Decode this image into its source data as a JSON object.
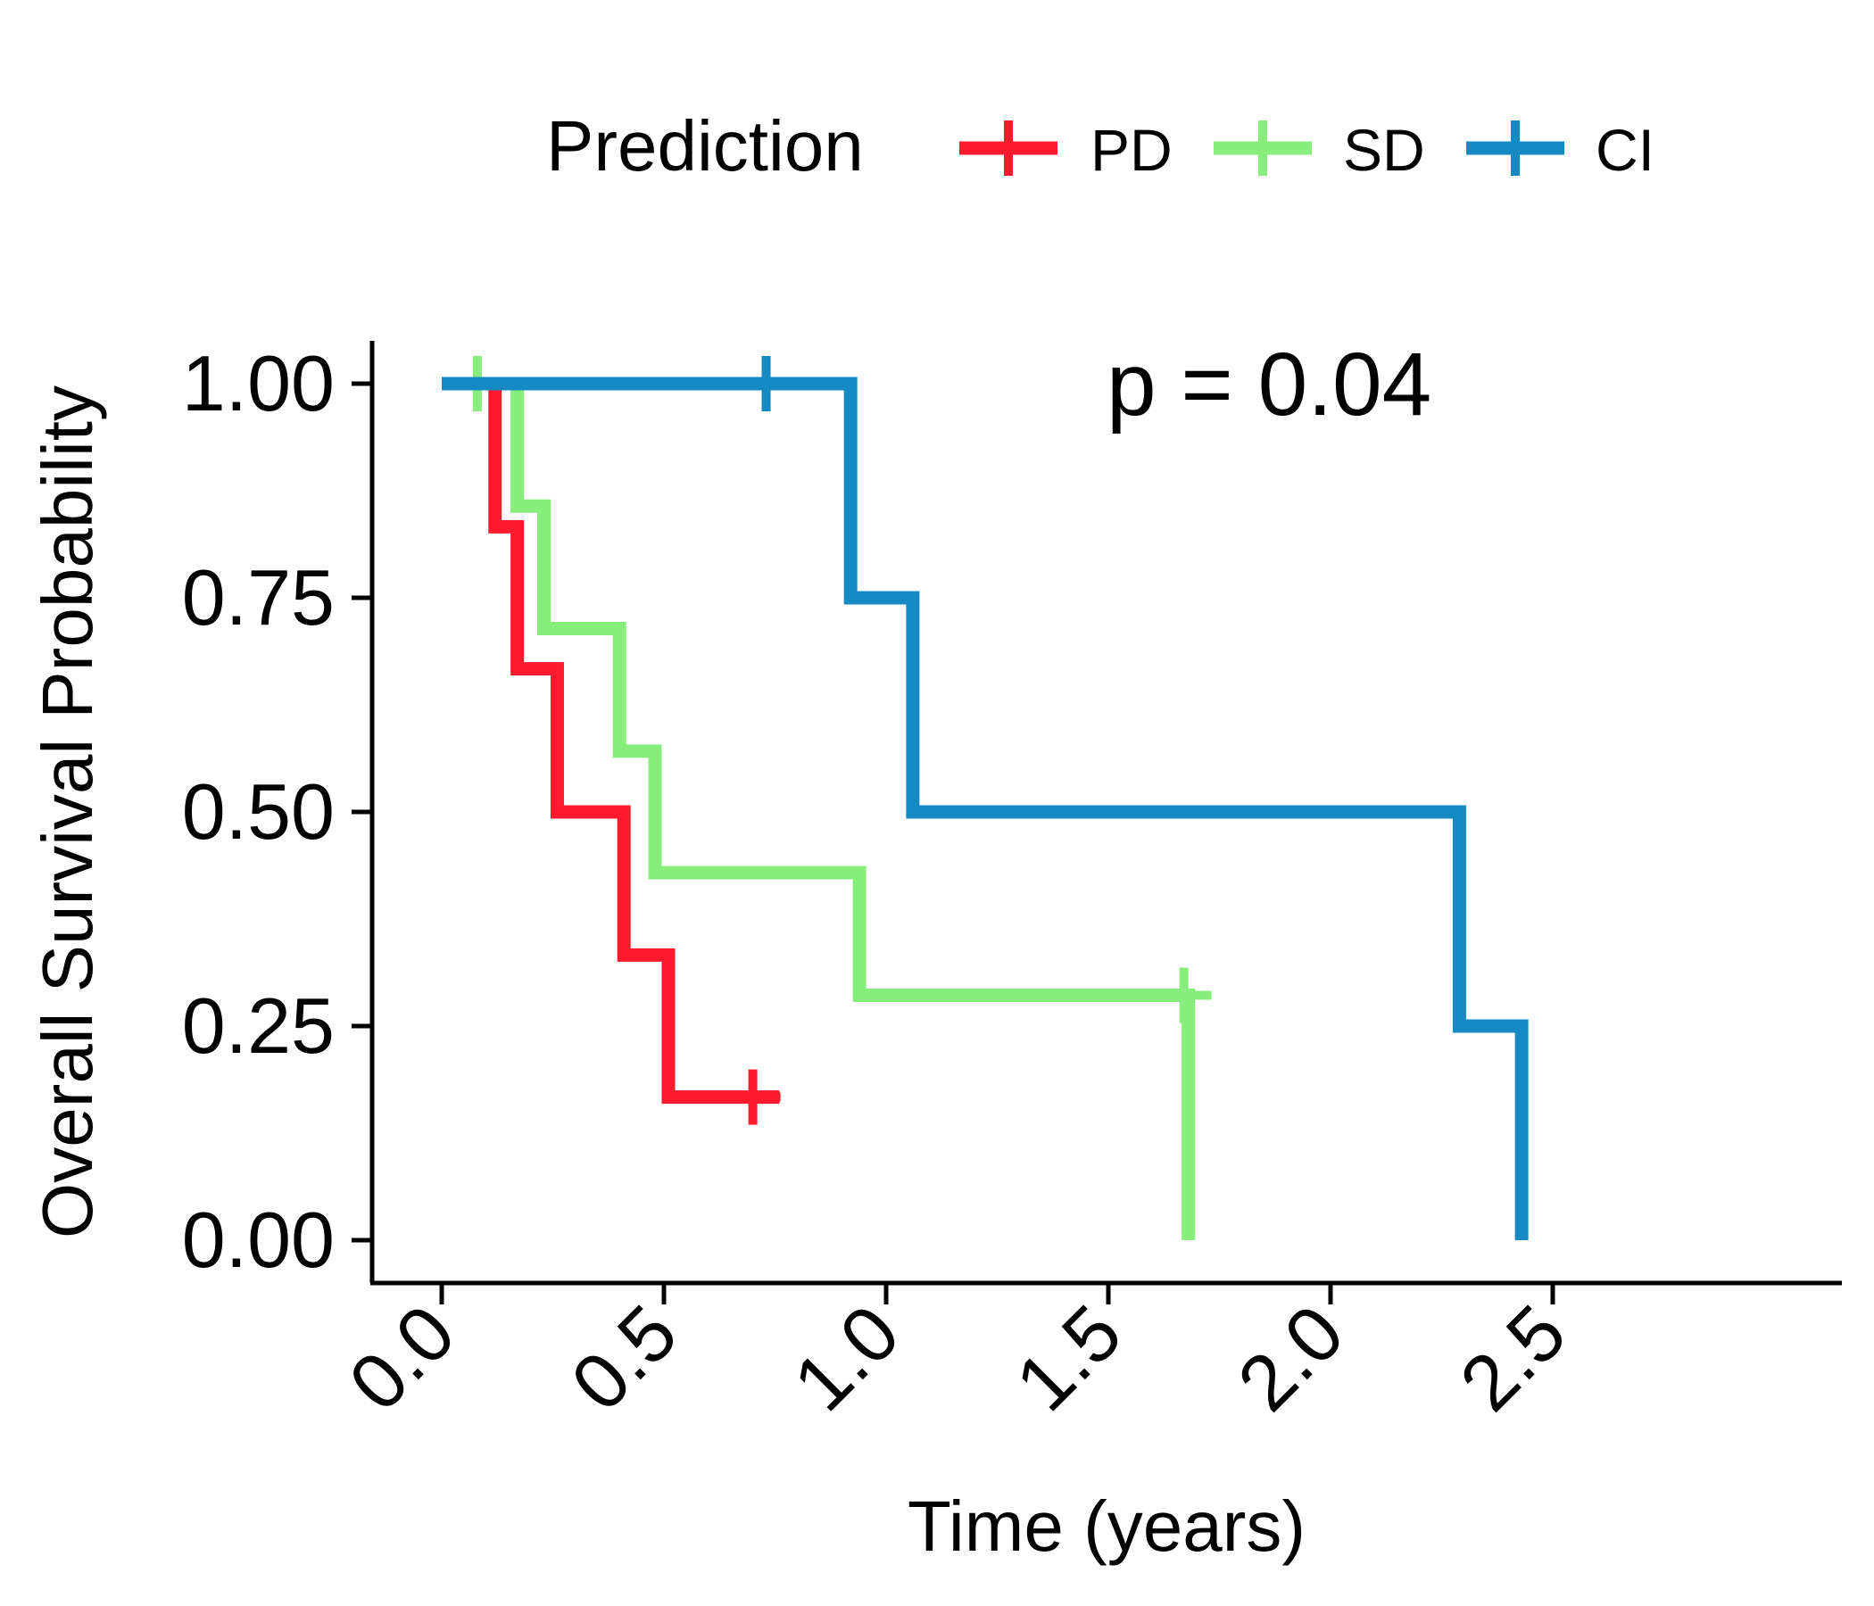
{
  "chart_data": {
    "type": "line",
    "subtype": "kaplan-meier step",
    "xlabel": "Time (years)",
    "ylabel": "Overall Survival Probability",
    "xlim": [
      -0.15,
      3.15
    ],
    "ylim": [
      -0.05,
      1.05
    ],
    "xticks": [
      0.0,
      0.5,
      1.0,
      1.5,
      2.0,
      2.5
    ],
    "xtick_labels": [
      "0.0",
      "0.5",
      "1.0",
      "1.5",
      "2.0",
      "2.5"
    ],
    "yticks": [
      0.0,
      0.25,
      0.5,
      0.75,
      1.0
    ],
    "ytick_labels": [
      "0.00",
      "0.25",
      "0.50",
      "0.75",
      "1.00"
    ],
    "legend": {
      "title": "Prediction",
      "position": "top",
      "entries": [
        "PD",
        "SD",
        "CI"
      ]
    },
    "annotation": "p = 0.04",
    "series": [
      {
        "name": "PD",
        "color": "#FF1A2E",
        "steps": [
          [
            0.0,
            1.0
          ],
          [
            0.12,
            0.833
          ],
          [
            0.17,
            0.667
          ],
          [
            0.26,
            0.5
          ],
          [
            0.41,
            0.333
          ],
          [
            0.51,
            0.167
          ],
          [
            0.76,
            0.167
          ]
        ],
        "censored": [
          [
            0.7,
            0.167
          ]
        ]
      },
      {
        "name": "SD",
        "color": "#87EE7B",
        "steps": [
          [
            0.0,
            1.0
          ],
          [
            0.17,
            0.857
          ],
          [
            0.23,
            0.714
          ],
          [
            0.4,
            0.571
          ],
          [
            0.48,
            0.429
          ],
          [
            0.94,
            0.286
          ],
          [
            1.68,
            0.0
          ]
        ],
        "censored": [
          [
            0.08,
            1.0
          ],
          [
            1.67,
            0.286
          ]
        ]
      },
      {
        "name": "CI",
        "color": "#1489C2",
        "steps": [
          [
            0.0,
            1.0
          ],
          [
            0.92,
            0.75
          ],
          [
            1.06,
            0.5
          ],
          [
            2.29,
            0.25
          ],
          [
            2.43,
            0.0
          ]
        ],
        "censored": [
          [
            0.73,
            1.0
          ]
        ]
      }
    ]
  }
}
